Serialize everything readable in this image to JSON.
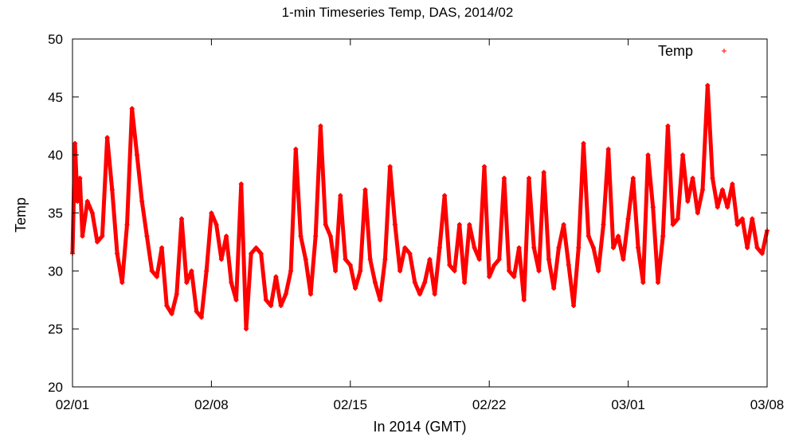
{
  "chart_data": {
    "type": "scatter",
    "title": "1-min Timeseries Temp, DAS, 2014/02",
    "xlabel": "In 2014 (GMT)",
    "ylabel": "Temp",
    "xlim": [
      "2014-02-01",
      "2014-03-08"
    ],
    "ylim": [
      20,
      50
    ],
    "x_ticks": [
      "02/01",
      "02/08",
      "02/15",
      "02/22",
      "03/01",
      "03/08"
    ],
    "y_ticks": [
      20,
      25,
      30,
      35,
      40,
      45,
      50
    ],
    "grid": false,
    "legend_position": "top-right",
    "series": [
      {
        "name": "Temp",
        "color": "#ff0000",
        "marker": "plus",
        "points": [
          [
            "2014-02-01 00:00",
            31.5
          ],
          [
            "2014-02-01 03:00",
            41
          ],
          [
            "2014-02-01 06:00",
            36
          ],
          [
            "2014-02-01 09:00",
            38
          ],
          [
            "2014-02-01 12:00",
            33
          ],
          [
            "2014-02-01 18:00",
            36
          ],
          [
            "2014-02-02 00:00",
            35
          ],
          [
            "2014-02-02 06:00",
            32.5
          ],
          [
            "2014-02-02 12:00",
            33
          ],
          [
            "2014-02-02 18:00",
            41.5
          ],
          [
            "2014-02-03 00:00",
            37
          ],
          [
            "2014-02-03 06:00",
            31.5
          ],
          [
            "2014-02-03 12:00",
            29
          ],
          [
            "2014-02-03 18:00",
            34
          ],
          [
            "2014-02-04 00:00",
            44
          ],
          [
            "2014-02-04 06:00",
            40
          ],
          [
            "2014-02-04 12:00",
            36
          ],
          [
            "2014-02-04 18:00",
            33
          ],
          [
            "2014-02-05 00:00",
            30
          ],
          [
            "2014-02-05 06:00",
            29.5
          ],
          [
            "2014-02-05 12:00",
            32
          ],
          [
            "2014-02-05 18:00",
            27
          ],
          [
            "2014-02-06 00:00",
            26.3
          ],
          [
            "2014-02-06 06:00",
            28
          ],
          [
            "2014-02-06 12:00",
            34.5
          ],
          [
            "2014-02-06 18:00",
            29
          ],
          [
            "2014-02-07 00:00",
            30
          ],
          [
            "2014-02-07 06:00",
            26.5
          ],
          [
            "2014-02-07 12:00",
            26
          ],
          [
            "2014-02-07 18:00",
            30
          ],
          [
            "2014-02-08 00:00",
            35
          ],
          [
            "2014-02-08 06:00",
            34
          ],
          [
            "2014-02-08 12:00",
            31
          ],
          [
            "2014-02-08 18:00",
            33
          ],
          [
            "2014-02-09 00:00",
            29
          ],
          [
            "2014-02-09 06:00",
            27.5
          ],
          [
            "2014-02-09 12:00",
            37.5
          ],
          [
            "2014-02-09 18:00",
            25
          ],
          [
            "2014-02-10 00:00",
            31.5
          ],
          [
            "2014-02-10 06:00",
            32
          ],
          [
            "2014-02-10 12:00",
            31.5
          ],
          [
            "2014-02-10 18:00",
            27.5
          ],
          [
            "2014-02-11 00:00",
            27
          ],
          [
            "2014-02-11 06:00",
            29.5
          ],
          [
            "2014-02-11 12:00",
            27
          ],
          [
            "2014-02-11 18:00",
            28
          ],
          [
            "2014-02-12 00:00",
            30
          ],
          [
            "2014-02-12 06:00",
            40.5
          ],
          [
            "2014-02-12 12:00",
            33
          ],
          [
            "2014-02-12 18:00",
            31
          ],
          [
            "2014-02-13 00:00",
            28
          ],
          [
            "2014-02-13 06:00",
            33
          ],
          [
            "2014-02-13 12:00",
            42.5
          ],
          [
            "2014-02-13 18:00",
            34
          ],
          [
            "2014-02-14 00:00",
            33
          ],
          [
            "2014-02-14 06:00",
            30
          ],
          [
            "2014-02-14 12:00",
            36.5
          ],
          [
            "2014-02-14 18:00",
            31
          ],
          [
            "2014-02-15 00:00",
            30.5
          ],
          [
            "2014-02-15 06:00",
            28.5
          ],
          [
            "2014-02-15 12:00",
            30
          ],
          [
            "2014-02-15 18:00",
            37
          ],
          [
            "2014-02-16 00:00",
            31
          ],
          [
            "2014-02-16 06:00",
            29
          ],
          [
            "2014-02-16 12:00",
            27.5
          ],
          [
            "2014-02-16 18:00",
            31
          ],
          [
            "2014-02-17 00:00",
            39
          ],
          [
            "2014-02-17 06:00",
            34
          ],
          [
            "2014-02-17 12:00",
            30
          ],
          [
            "2014-02-17 18:00",
            32
          ],
          [
            "2014-02-18 00:00",
            31.5
          ],
          [
            "2014-02-18 06:00",
            29
          ],
          [
            "2014-02-18 12:00",
            28
          ],
          [
            "2014-02-18 18:00",
            29
          ],
          [
            "2014-02-19 00:00",
            31
          ],
          [
            "2014-02-19 06:00",
            28
          ],
          [
            "2014-02-19 12:00",
            32
          ],
          [
            "2014-02-19 18:00",
            36.5
          ],
          [
            "2014-02-20 00:00",
            30.5
          ],
          [
            "2014-02-20 06:00",
            30
          ],
          [
            "2014-02-20 12:00",
            34
          ],
          [
            "2014-02-20 18:00",
            29
          ],
          [
            "2014-02-21 00:00",
            34
          ],
          [
            "2014-02-21 06:00",
            32
          ],
          [
            "2014-02-21 12:00",
            31
          ],
          [
            "2014-02-21 18:00",
            39
          ],
          [
            "2014-02-22 00:00",
            29.5
          ],
          [
            "2014-02-22 06:00",
            30.5
          ],
          [
            "2014-02-22 12:00",
            31
          ],
          [
            "2014-02-22 18:00",
            38
          ],
          [
            "2014-02-23 00:00",
            30
          ],
          [
            "2014-02-23 06:00",
            29.5
          ],
          [
            "2014-02-23 12:00",
            32
          ],
          [
            "2014-02-23 18:00",
            27.5
          ],
          [
            "2014-02-24 00:00",
            38
          ],
          [
            "2014-02-24 06:00",
            32
          ],
          [
            "2014-02-24 12:00",
            30
          ],
          [
            "2014-02-24 18:00",
            38.5
          ],
          [
            "2014-02-25 00:00",
            31
          ],
          [
            "2014-02-25 06:00",
            28.5
          ],
          [
            "2014-02-25 12:00",
            32
          ],
          [
            "2014-02-25 18:00",
            34
          ],
          [
            "2014-02-26 00:00",
            30.5
          ],
          [
            "2014-02-26 06:00",
            27
          ],
          [
            "2014-02-26 12:00",
            32
          ],
          [
            "2014-02-26 18:00",
            41
          ],
          [
            "2014-02-27 00:00",
            33
          ],
          [
            "2014-02-27 06:00",
            32
          ],
          [
            "2014-02-27 12:00",
            30
          ],
          [
            "2014-02-27 18:00",
            34
          ],
          [
            "2014-02-28 00:00",
            40.5
          ],
          [
            "2014-02-28 06:00",
            32
          ],
          [
            "2014-02-28 12:00",
            33
          ],
          [
            "2014-02-28 18:00",
            31
          ],
          [
            "2014-03-01 00:00",
            34.5
          ],
          [
            "2014-03-01 06:00",
            38
          ],
          [
            "2014-03-01 12:00",
            32
          ],
          [
            "2014-03-01 18:00",
            29
          ],
          [
            "2014-03-02 00:00",
            40
          ],
          [
            "2014-03-02 06:00",
            35.5
          ],
          [
            "2014-03-02 12:00",
            29
          ],
          [
            "2014-03-02 18:00",
            33
          ],
          [
            "2014-03-03 00:00",
            42.5
          ],
          [
            "2014-03-03 06:00",
            34
          ],
          [
            "2014-03-03 12:00",
            34.5
          ],
          [
            "2014-03-03 18:00",
            40
          ],
          [
            "2014-03-04 00:00",
            36
          ],
          [
            "2014-03-04 06:00",
            38
          ],
          [
            "2014-03-04 12:00",
            35
          ],
          [
            "2014-03-04 18:00",
            37
          ],
          [
            "2014-03-05 00:00",
            46
          ],
          [
            "2014-03-05 06:00",
            38
          ],
          [
            "2014-03-05 12:00",
            35.5
          ],
          [
            "2014-03-05 18:00",
            37
          ],
          [
            "2014-03-06 00:00",
            35.5
          ],
          [
            "2014-03-06 06:00",
            37.5
          ],
          [
            "2014-03-06 12:00",
            34
          ],
          [
            "2014-03-06 18:00",
            34.5
          ],
          [
            "2014-03-07 00:00",
            32
          ],
          [
            "2014-03-07 06:00",
            34.5
          ],
          [
            "2014-03-07 12:00",
            32
          ],
          [
            "2014-03-07 18:00",
            31.5
          ],
          [
            "2014-03-08 00:00",
            33.5
          ]
        ]
      }
    ]
  }
}
